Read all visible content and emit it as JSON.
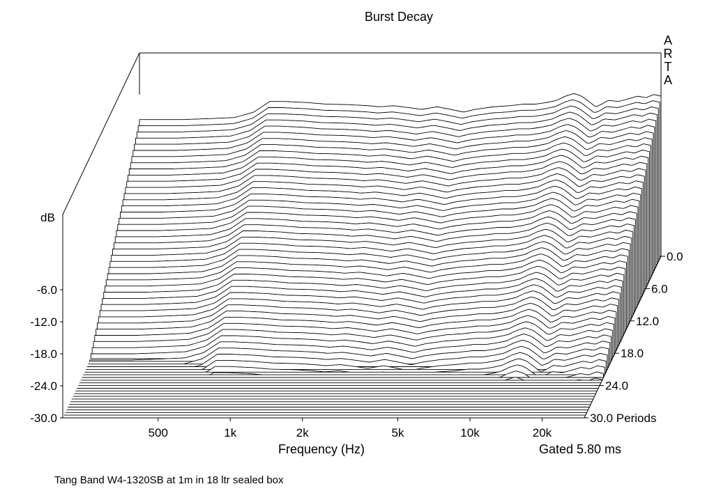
{
  "chart_data": {
    "type": "waterfall",
    "title": "Burst Decay",
    "xlabel": "Frequency (Hz)",
    "ylabel": "dB",
    "zlabel": "Periods",
    "x_scale": "log",
    "xlim": [
      200,
      30000
    ],
    "ylim": [
      -30,
      0
    ],
    "zlim": [
      0,
      30
    ],
    "x_ticks": [
      "500",
      "1k",
      "2k",
      "5k",
      "10k",
      "20k"
    ],
    "x_tick_values": [
      500,
      1000,
      2000,
      5000,
      10000,
      20000
    ],
    "y_ticks": [
      "-6.0",
      "-12.0",
      "-18.0",
      "-24.0",
      "-30.0"
    ],
    "y_tick_values": [
      -6,
      -12,
      -18,
      -24,
      -30
    ],
    "z_ticks": [
      "0.0",
      "6.0",
      "12.0",
      "18.0",
      "24.0",
      "30.0 Periods"
    ],
    "z_tick_values": [
      0,
      6,
      12,
      18,
      24,
      30
    ],
    "gate_label": "Gated 5.80 ms",
    "brand": "ARTA",
    "caption": "Tang Band W4-1320SB at 1m in 18 ltr sealed box",
    "front_response": {
      "freq_hz": [
        230,
        300,
        400,
        500,
        600,
        700,
        800,
        1000,
        1200,
        1500,
        1800,
        2000,
        2300,
        2700,
        3000,
        3500,
        4000,
        4500,
        5000,
        6000,
        7000,
        8000,
        9000,
        10000,
        11000,
        12000,
        13000,
        14000,
        15000,
        16000,
        17000,
        18000,
        20000,
        22000,
        24000,
        26000,
        28000,
        30000
      ],
      "level_db": [
        -4.4,
        -4.4,
        -4.2,
        -4.0,
        -3.0,
        -1.0,
        -1.0,
        -1.2,
        -1.5,
        -1.6,
        -1.8,
        -2.0,
        -1.8,
        -2.2,
        -2.5,
        -2.0,
        -2.5,
        -3.0,
        -2.5,
        -2.0,
        -1.8,
        -1.5,
        -1.5,
        -1.2,
        -0.8,
        0.0,
        0.5,
        0.0,
        -1.0,
        -2.0,
        -1.5,
        -0.8,
        -1.0,
        -0.5,
        0.0,
        -0.3,
        0.3,
        0.0
      ]
    }
  }
}
